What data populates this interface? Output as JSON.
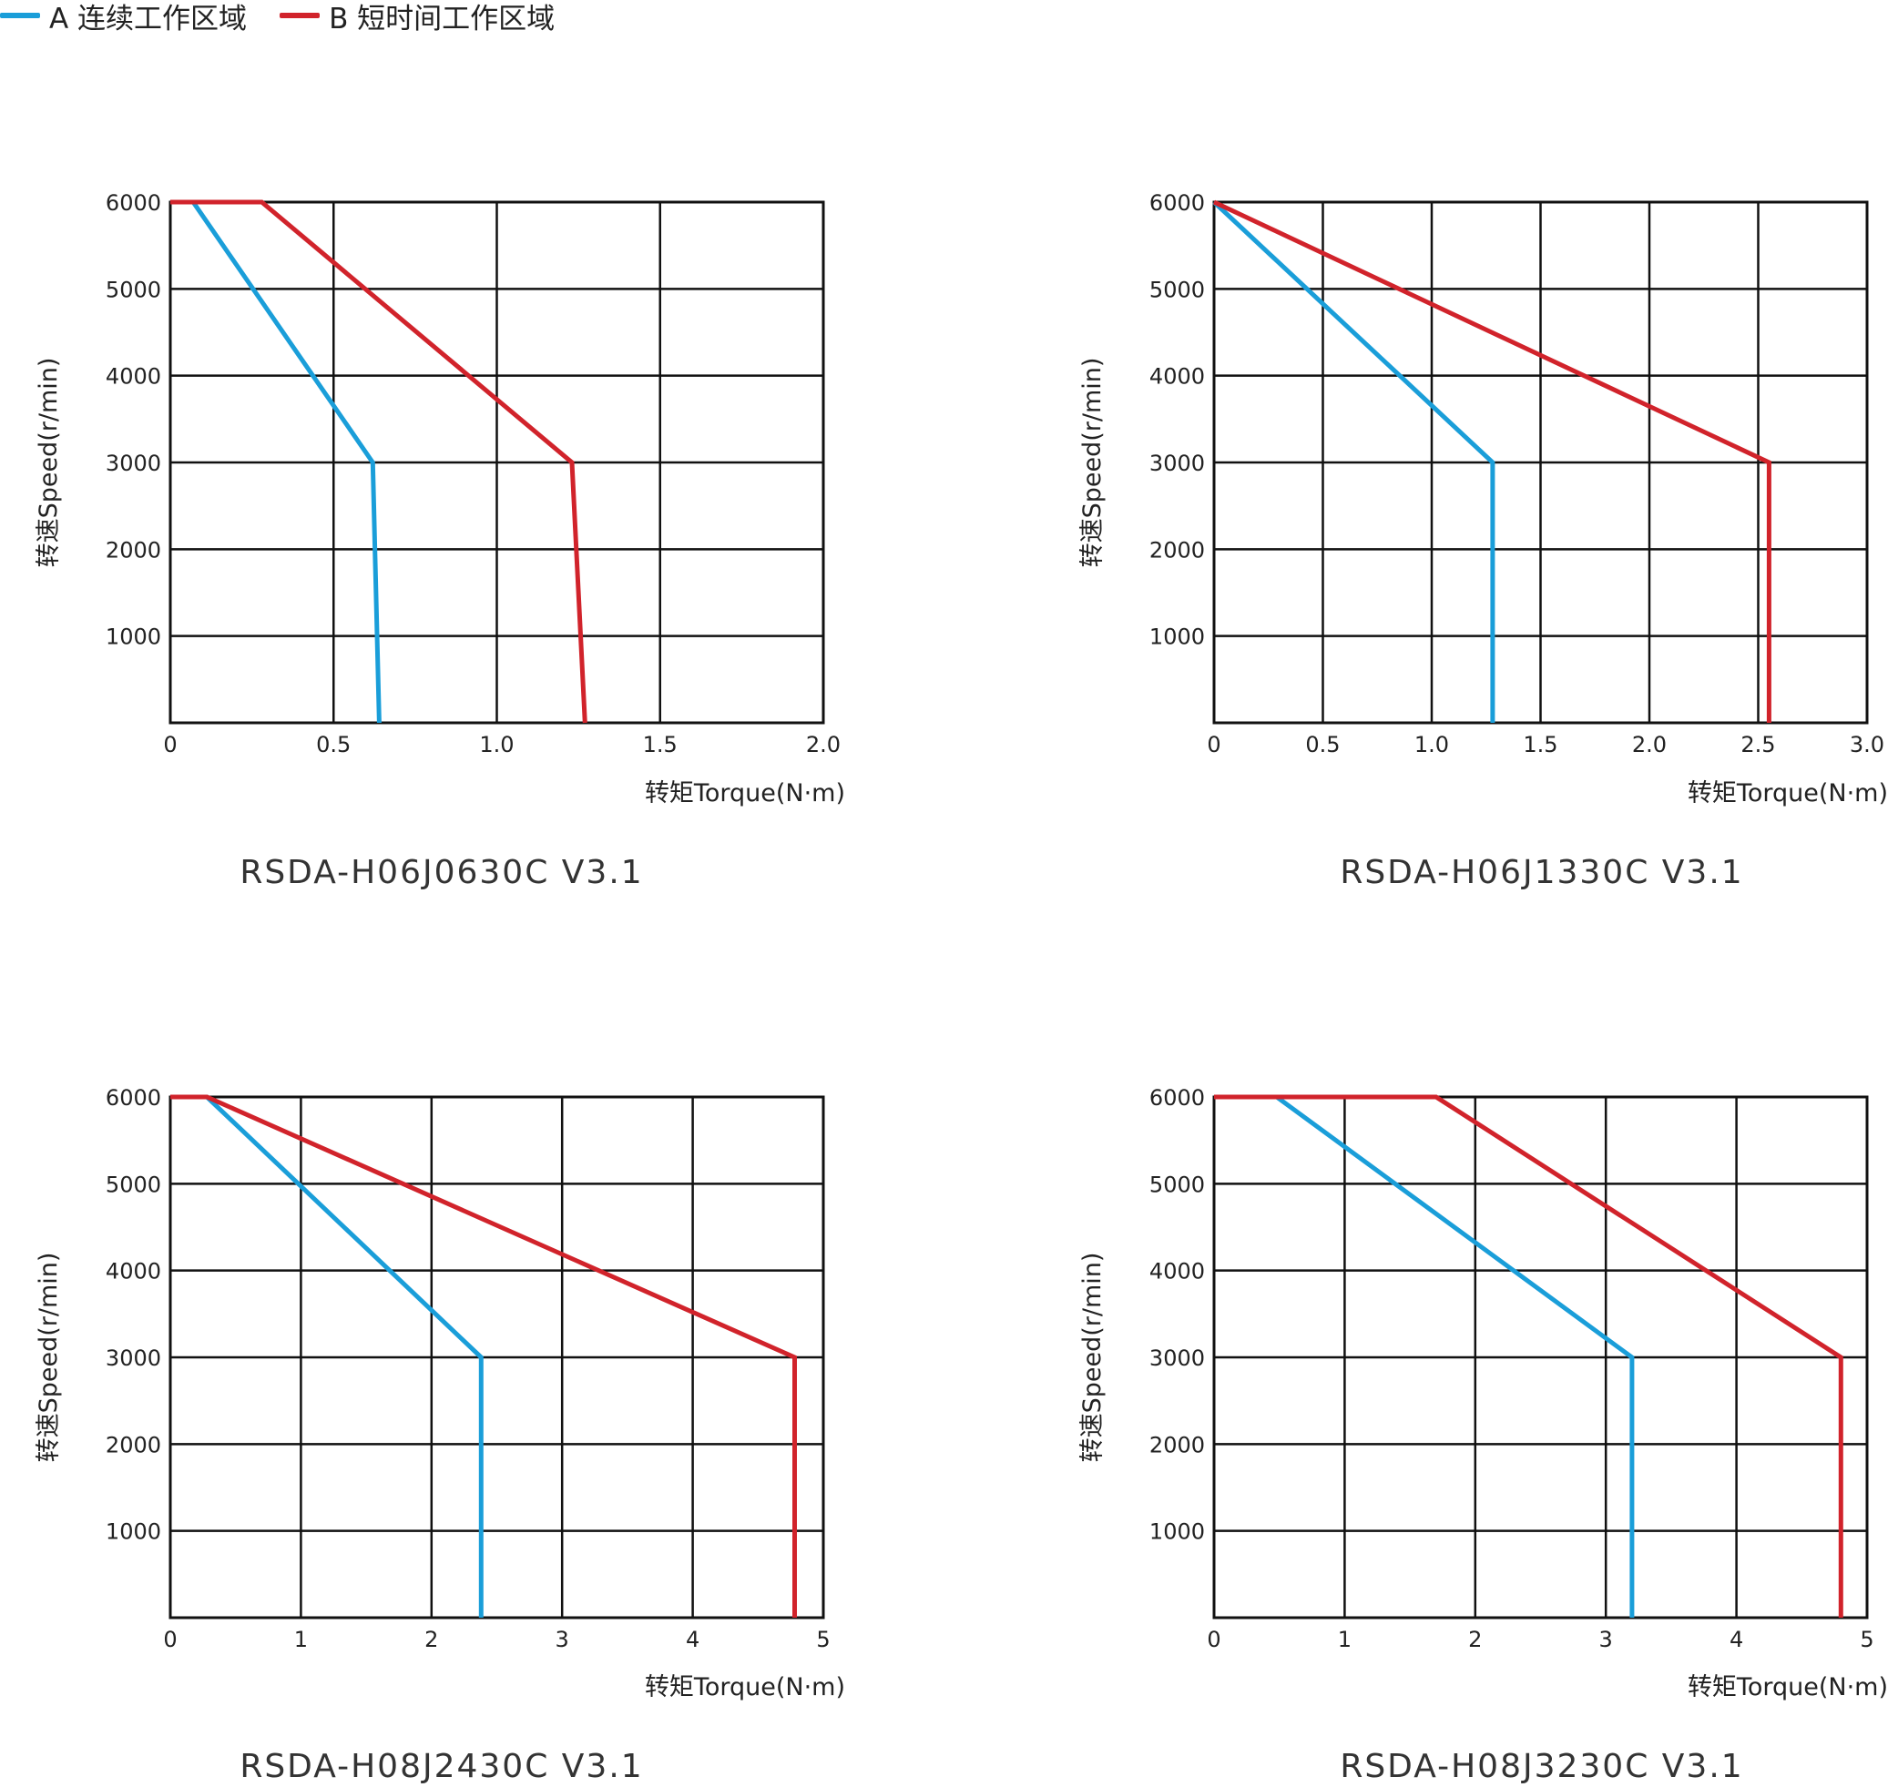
{
  "legend": {
    "items": [
      {
        "label": "A 连续工作区域",
        "color": "#1a9ed9"
      },
      {
        "label": "B 短时间工作区域",
        "color": "#d1232b"
      }
    ]
  },
  "colors": {
    "continuous": "#1a9ed9",
    "short": "#d1232b",
    "grid": "#111111"
  },
  "chart_data": [
    {
      "type": "line",
      "title": "RSDA-H06J0630C V3.1",
      "xlabel": "转矩Torque(N·m)",
      "ylabel": "转速Speed(r/min)",
      "xlim": [
        0,
        2.0
      ],
      "ylim": [
        0,
        6000
      ],
      "xticks": [
        "0",
        "0.5",
        "1.0",
        "1.5",
        "2.0"
      ],
      "xtick_values": [
        0,
        0.5,
        1.0,
        1.5,
        2.0
      ],
      "yticks": [
        "1000",
        "2000",
        "3000",
        "4000",
        "5000",
        "6000"
      ],
      "ytick_values": [
        1000,
        2000,
        3000,
        4000,
        5000,
        6000
      ],
      "grid": true,
      "series": [
        {
          "key": "continuous",
          "points": [
            [
              0,
              6000
            ],
            [
              0.07,
              6000
            ],
            [
              0.62,
              3000
            ],
            [
              0.64,
              0
            ]
          ]
        },
        {
          "key": "short",
          "points": [
            [
              0,
              6000
            ],
            [
              0.28,
              6000
            ],
            [
              1.23,
              3000
            ],
            [
              1.27,
              0
            ]
          ]
        }
      ]
    },
    {
      "type": "line",
      "title": "RSDA-H06J1330C  V3.1",
      "xlabel": "转矩Torque(N·m)",
      "ylabel": "转速Speed(r/min)",
      "xlim": [
        0,
        3.0
      ],
      "ylim": [
        0,
        6000
      ],
      "xticks": [
        "0",
        "0.5",
        "1.0",
        "1.5",
        "2.0",
        "2.5",
        "3.0"
      ],
      "xtick_values": [
        0,
        0.5,
        1.0,
        1.5,
        2.0,
        2.5,
        3.0
      ],
      "yticks": [
        "1000",
        "2000",
        "3000",
        "4000",
        "5000",
        "6000"
      ],
      "ytick_values": [
        1000,
        2000,
        3000,
        4000,
        5000,
        6000
      ],
      "grid": true,
      "series": [
        {
          "key": "continuous",
          "points": [
            [
              0,
              6000
            ],
            [
              1.28,
              3000
            ],
            [
              1.28,
              0
            ]
          ]
        },
        {
          "key": "short",
          "points": [
            [
              0,
              6000
            ],
            [
              2.55,
              3000
            ],
            [
              2.55,
              0
            ]
          ]
        }
      ]
    },
    {
      "type": "line",
      "title": "RSDA-H08J2430C  V3.1",
      "xlabel": "转矩Torque(N·m)",
      "ylabel": "转速Speed(r/min)",
      "xlim": [
        0,
        5
      ],
      "ylim": [
        0,
        6000
      ],
      "xticks": [
        "0",
        "1",
        "2",
        "3",
        "4",
        "5"
      ],
      "xtick_values": [
        0,
        1,
        2,
        3,
        4,
        5
      ],
      "yticks": [
        "1000",
        "2000",
        "3000",
        "4000",
        "5000",
        "6000"
      ],
      "ytick_values": [
        1000,
        2000,
        3000,
        4000,
        5000,
        6000
      ],
      "grid": true,
      "series": [
        {
          "key": "continuous",
          "points": [
            [
              0,
              6000
            ],
            [
              0.28,
              6000
            ],
            [
              2.38,
              3000
            ],
            [
              2.38,
              0
            ]
          ]
        },
        {
          "key": "short",
          "points": [
            [
              0,
              6000
            ],
            [
              0.28,
              6000
            ],
            [
              4.78,
              3000
            ],
            [
              4.78,
              0
            ]
          ]
        }
      ]
    },
    {
      "type": "line",
      "title": "RSDA-H08J3230C  V3.1",
      "xlabel": "转矩Torque(N·m)",
      "ylabel": "转速Speed(r/min)",
      "xlim": [
        0,
        5
      ],
      "ylim": [
        0,
        6000
      ],
      "xticks": [
        "0",
        "1",
        "2",
        "3",
        "4",
        "5"
      ],
      "xtick_values": [
        0,
        1,
        2,
        3,
        4,
        5
      ],
      "yticks": [
        "1000",
        "2000",
        "3000",
        "4000",
        "5000",
        "6000"
      ],
      "ytick_values": [
        1000,
        2000,
        3000,
        4000,
        5000,
        6000
      ],
      "grid": true,
      "series": [
        {
          "key": "continuous",
          "points": [
            [
              0,
              6000
            ],
            [
              0.48,
              6000
            ],
            [
              3.2,
              3000
            ],
            [
              3.2,
              0
            ]
          ]
        },
        {
          "key": "short",
          "points": [
            [
              0,
              6000
            ],
            [
              1.7,
              6000
            ],
            [
              4.8,
              3000
            ],
            [
              4.8,
              0
            ]
          ]
        }
      ]
    }
  ]
}
